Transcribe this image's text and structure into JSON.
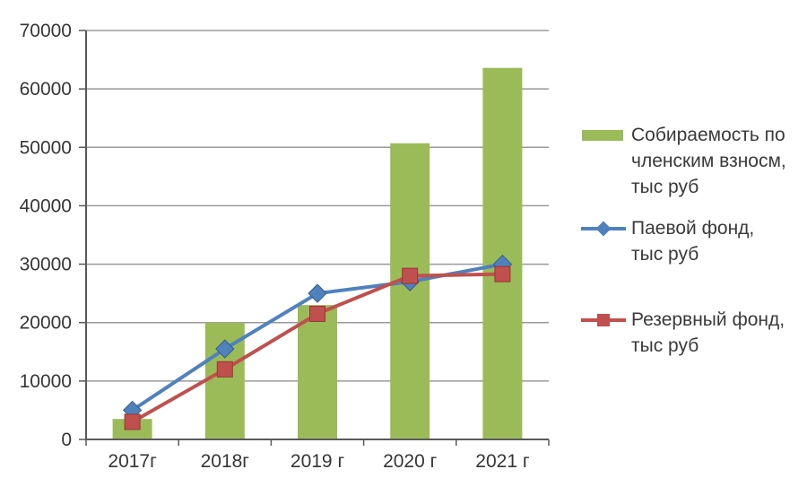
{
  "chart_data": {
    "type": "bar",
    "combo": "bar+line",
    "title": "",
    "categories": [
      "2017г",
      "2018г",
      "2019 г",
      "2020 г",
      "2021 г"
    ],
    "series": [
      {
        "name": "Собираемость по членским взносм, тыс руб",
        "type": "bar",
        "color": "#9bbb59",
        "values": [
          3500,
          20000,
          23000,
          50700,
          63600
        ]
      },
      {
        "name": "Паевой фонд, тыс руб",
        "type": "line",
        "marker": "diamond",
        "color": "#4f81bd",
        "marker_edge": "#385d8a",
        "values": [
          5000,
          15500,
          25000,
          27000,
          30000
        ]
      },
      {
        "name": "Резервный фонд, тыс руб",
        "type": "line",
        "marker": "square",
        "color": "#c0504d",
        "marker_edge": "#963634",
        "values": [
          3000,
          12000,
          21500,
          28000,
          28300
        ]
      }
    ],
    "xlabel": "",
    "ylabel": "",
    "ylim": [
      0,
      70000
    ],
    "yticks": [
      0,
      10000,
      20000,
      30000,
      40000,
      50000,
      60000,
      70000
    ],
    "grid": "horizontal",
    "grid_color": "#9a9a9a",
    "axis_color": "#595959",
    "legend_position": "right"
  },
  "legend": {
    "items": [
      {
        "lines": [
          "Собираемость по",
          "членским взносм,",
          "тыс руб"
        ]
      },
      {
        "lines": [
          "Паевой фонд,",
          "тыс руб"
        ]
      },
      {
        "lines": [
          "Резервный фонд,",
          "тыс руб"
        ]
      }
    ]
  }
}
